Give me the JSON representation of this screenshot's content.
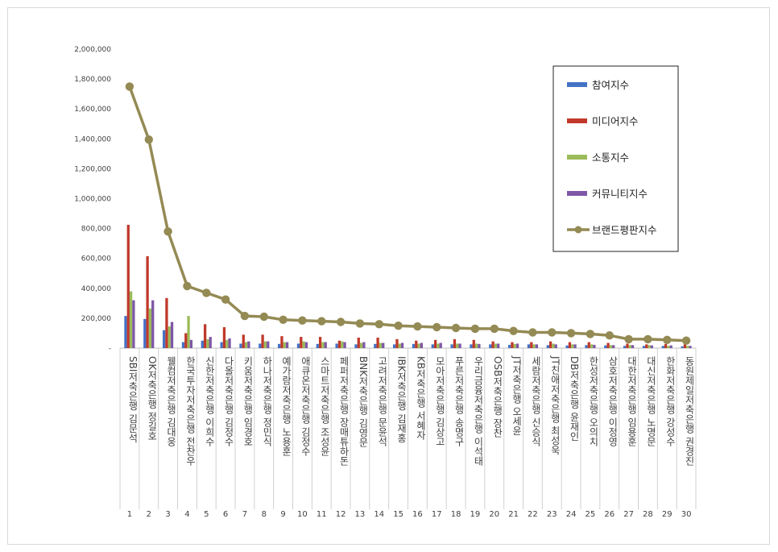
{
  "chart_data": {
    "type": "bar",
    "title": "",
    "xlabel": "",
    "ylabel": "",
    "ylim": [
      0,
      2000000
    ],
    "yticks": [
      "-",
      "200,000",
      "400,000",
      "600,000",
      "800,000",
      "1,000,000",
      "1,200,000",
      "1,400,000",
      "1,600,000",
      "1,800,000",
      "2,000,000"
    ],
    "legend_position": "top-right",
    "ranks": [
      "1",
      "2",
      "3",
      "4",
      "5",
      "6",
      "7",
      "8",
      "9",
      "10",
      "11",
      "12",
      "13",
      "14",
      "15",
      "16",
      "17",
      "18",
      "19",
      "20",
      "21",
      "22",
      "23",
      "24",
      "25",
      "26",
      "27",
      "28",
      "29",
      "30"
    ],
    "categories": [
      "SBI저축은행 김문석",
      "OK저축은행 정길호",
      "웰컴저축은행 김대웅",
      "한국투자저축은행 전찬우",
      "신한저축은행 이희수",
      "다올저축은행 김정수",
      "키움저축은행 임경호",
      "하나저축은행 정민식",
      "예가람저축은행 노용훈",
      "애큐온저축은행 김정수",
      "스마트저축은행 조성윤",
      "페퍼저축은행 장매튜하돈",
      "BNK저축은행 김영문",
      "고려저축은행 문윤석",
      "IBK저축은행 김재홍",
      "KB저축은행 서혜자",
      "모아저축은행 김상고",
      "푸른저축은행 송명구",
      "우리금융저축은행 이석태",
      "OSB저축은행 장찬",
      "JT저축은행 오세윤",
      "세람저축은행 신승식",
      "JT친애저축은행 최성욱",
      "DB저축은행 윤재인",
      "한성저축은행 오의치",
      "삼호저축은행 이정영",
      "대한저축은행 임용훈",
      "대신저축은행 노명문",
      "한화저축은행 강성수",
      "동원제일저축은행 권경진"
    ],
    "series": [
      {
        "name": "참여지수",
        "color": "#4472c4",
        "values": [
          215000,
          195000,
          120000,
          40000,
          50000,
          40000,
          30000,
          30000,
          28000,
          30000,
          28000,
          30000,
          25000,
          28000,
          25000,
          28000,
          25000,
          25000,
          25000,
          25000,
          22000,
          25000,
          20000,
          18000,
          20000,
          18000,
          15000,
          15000,
          15000,
          12000
        ]
      },
      {
        "name": "미디어지수",
        "color": "#c0392b",
        "values": [
          825000,
          615000,
          335000,
          100000,
          160000,
          140000,
          90000,
          90000,
          80000,
          75000,
          75000,
          50000,
          70000,
          70000,
          60000,
          50000,
          55000,
          60000,
          55000,
          45000,
          40000,
          40000,
          45000,
          40000,
          40000,
          35000,
          30000,
          25000,
          28000,
          25000
        ]
      },
      {
        "name": "소통지수",
        "color": "#9bbb59",
        "values": [
          380000,
          265000,
          145000,
          215000,
          60000,
          55000,
          40000,
          45000,
          40000,
          45000,
          40000,
          45000,
          35000,
          35000,
          30000,
          30000,
          30000,
          30000,
          30000,
          30000,
          28000,
          25000,
          30000,
          25000,
          25000,
          20000,
          20000,
          20000,
          15000,
          15000
        ]
      },
      {
        "name": "커뮤니티지수",
        "color": "#7e57a6",
        "values": [
          320000,
          320000,
          175000,
          55000,
          75000,
          65000,
          45000,
          45000,
          40000,
          40000,
          40000,
          40000,
          40000,
          35000,
          35000,
          35000,
          35000,
          30000,
          28000,
          30000,
          30000,
          25000,
          25000,
          25000,
          22000,
          20000,
          20000,
          18000,
          18000,
          15000
        ]
      },
      {
        "name": "브랜드평판지수",
        "color": "#948a54",
        "type": "line",
        "values": [
          1750000,
          1395000,
          780000,
          415000,
          370000,
          325000,
          215000,
          210000,
          190000,
          185000,
          180000,
          175000,
          165000,
          160000,
          150000,
          145000,
          140000,
          135000,
          130000,
          130000,
          115000,
          105000,
          105000,
          100000,
          95000,
          85000,
          60000,
          60000,
          55000,
          50000
        ]
      }
    ]
  }
}
